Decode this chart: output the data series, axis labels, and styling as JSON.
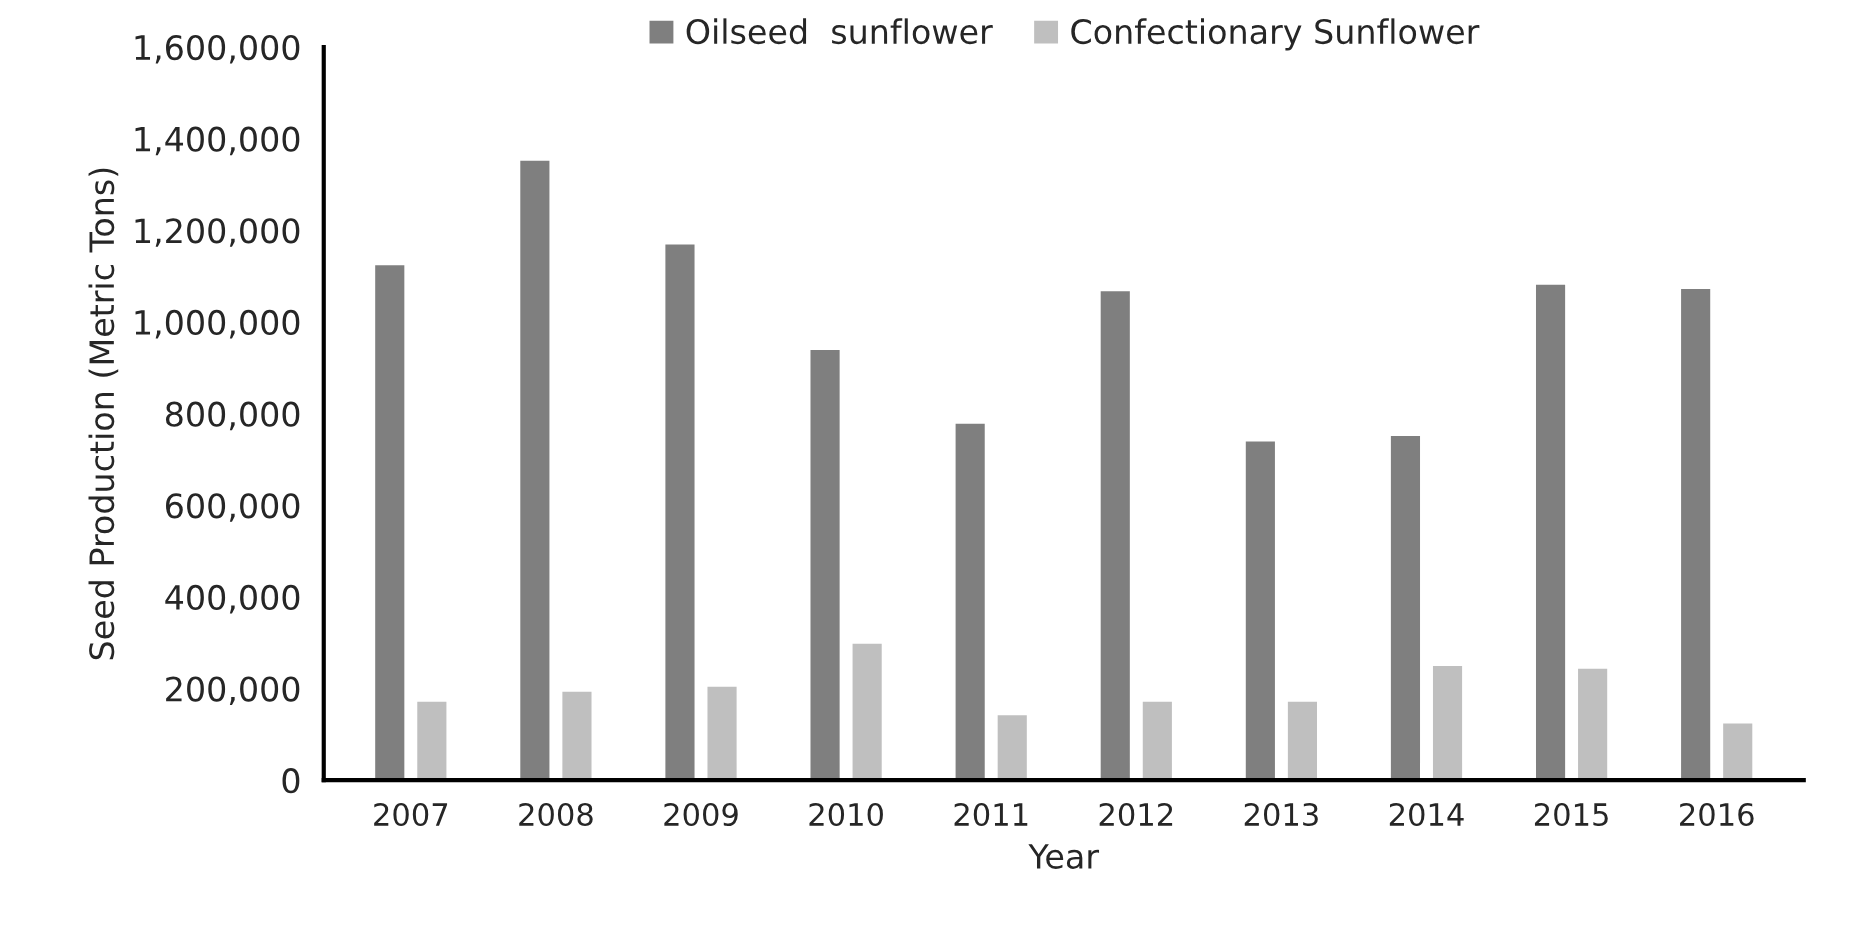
{
  "chart_data": {
    "type": "bar",
    "xlabel": "Year",
    "ylabel": "Seed Production (Metric Tons)",
    "categories": [
      "2007",
      "2008",
      "2009",
      "2010",
      "2011",
      "2012",
      "2013",
      "2014",
      "2015",
      "2016"
    ],
    "series": [
      {
        "name": "Oilseed  sunflower",
        "color": "#7f7f7f",
        "values": [
          1127000,
          1355000,
          1172000,
          942000,
          781000,
          1070000,
          742000,
          754000,
          1084000,
          1075000
        ]
      },
      {
        "name": "Confectionary Sunflower",
        "color": "#bfbfbf",
        "values": [
          174000,
          196000,
          207000,
          301000,
          145000,
          174000,
          174000,
          252000,
          246000,
          127000
        ]
      }
    ],
    "ylim": [
      0,
      1600000
    ],
    "yticks": [
      {
        "value": 0,
        "label": "0"
      },
      {
        "value": 200000,
        "label": "200,000"
      },
      {
        "value": 400000,
        "label": "400,000"
      },
      {
        "value": 600000,
        "label": "600,000"
      },
      {
        "value": 800000,
        "label": "800,000"
      },
      {
        "value": 1000000,
        "label": "1,000,000"
      },
      {
        "value": 1200000,
        "label": "1,200,000"
      },
      {
        "value": 1400000,
        "label": "1,400,000"
      },
      {
        "value": 1600000,
        "label": "1,600,000"
      }
    ],
    "grid": false,
    "legend": "top"
  }
}
